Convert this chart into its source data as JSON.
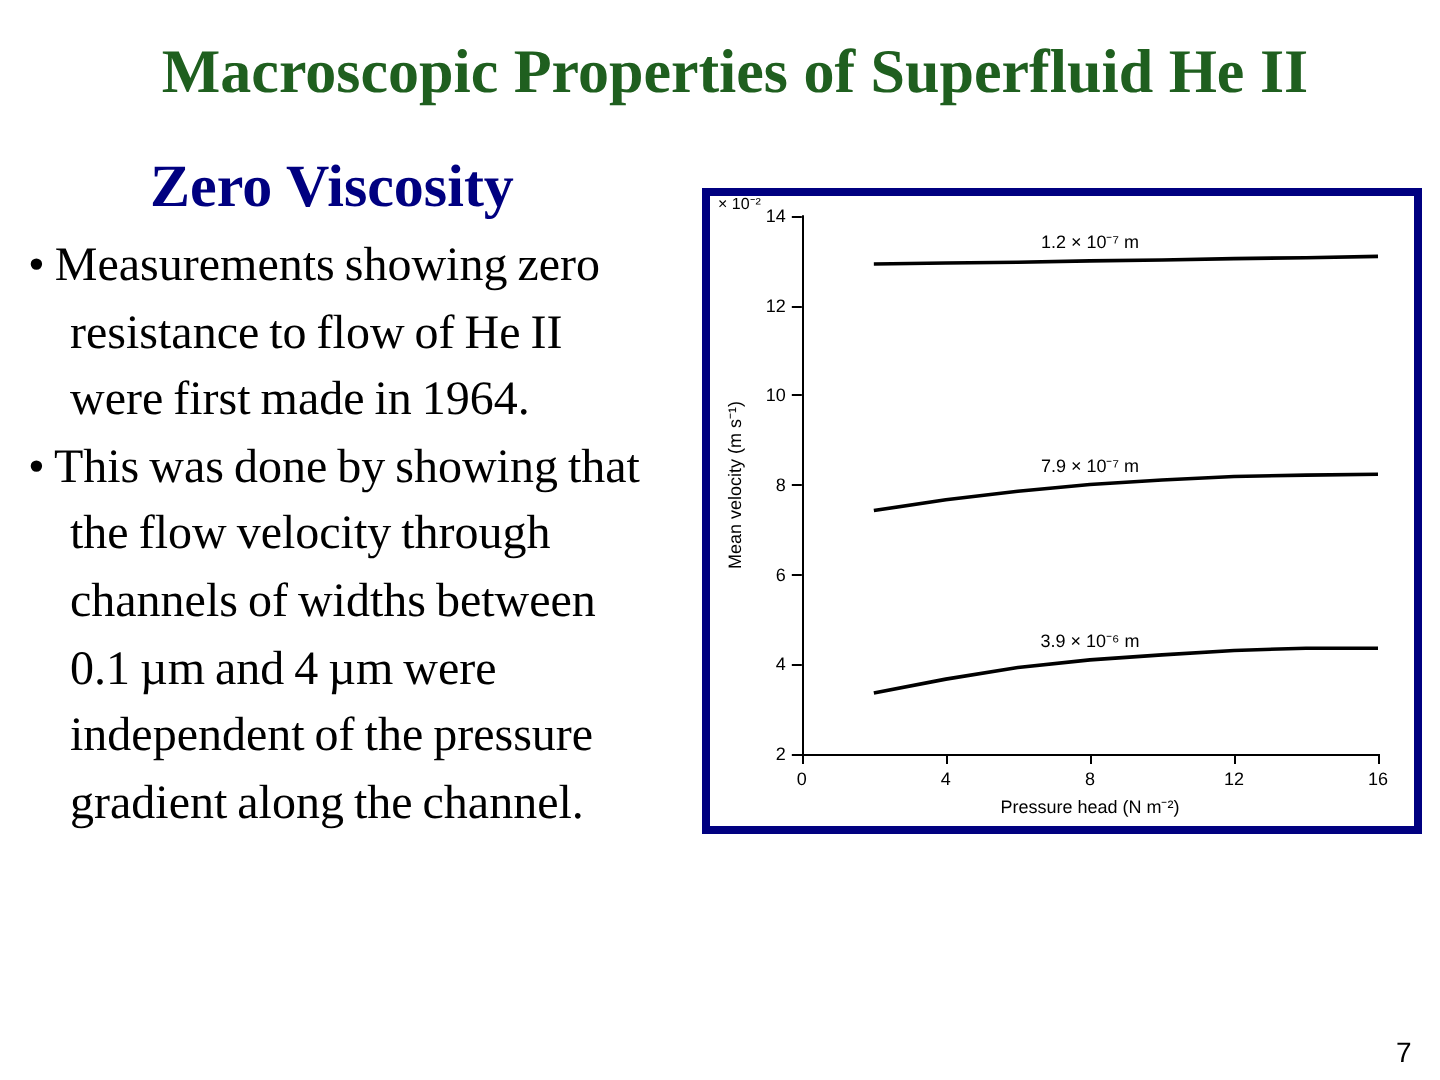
{
  "chart_data": {
    "type": "line",
    "title": "Macroscopic Properties of Superfluid He II",
    "subtitle": "Zero Viscosity",
    "xlabel": "Pressure head (N m⁻²)",
    "ylabel": "Mean velocity (m s⁻¹)",
    "annotations": [
      "× 10⁻²",
      "• Measurements showing zero resistance to flow of He II were first made in 1964.",
      "• This was done by showing that the flow velocity through channels of widths between 0.1 µm and 4 µm were independent of the pressure gradient along the channel.",
      "7"
    ],
    "x": [
      2,
      4,
      6,
      8,
      10,
      12,
      14,
      16
    ],
    "series": [
      {
        "name": "1.2 × 10⁻⁷ m",
        "color": "#000000",
        "values": [
          12.93,
          12.95,
          12.97,
          13.0,
          13.02,
          13.05,
          13.07,
          13.1
        ]
      },
      {
        "name": "7.9 × 10⁻⁷ m",
        "color": "#000000",
        "values": [
          7.43,
          7.67,
          7.86,
          8.01,
          8.11,
          8.19,
          8.22,
          8.24
        ]
      },
      {
        "name": "3.9 × 10⁻⁶ m",
        "color": "#000000",
        "values": [
          3.36,
          3.67,
          3.93,
          4.1,
          4.21,
          4.31,
          4.36,
          4.36
        ]
      }
    ],
    "xlim": [
      0,
      16
    ],
    "xticks": [
      0,
      4,
      8,
      12,
      16
    ],
    "ylim": [
      2,
      14
    ],
    "yticks": [
      2,
      4,
      6,
      8,
      10,
      12,
      14
    ],
    "grid": false,
    "legend": false,
    "marker": "none",
    "line_style": "solid"
  }
}
